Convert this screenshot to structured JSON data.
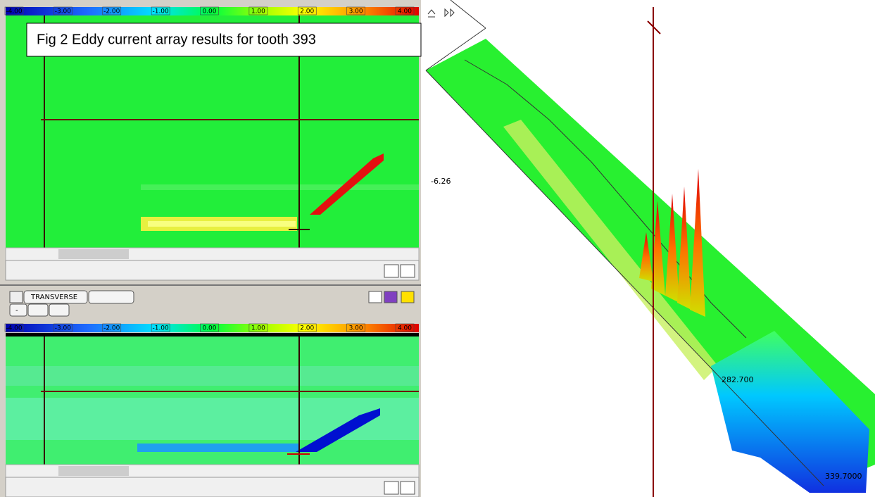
{
  "caption": "Fig 2 Eddy current array results for tooth 393",
  "color_scale": {
    "labels": [
      "-4.00",
      "-3.00",
      "-2.00",
      "-1.00",
      "0.00",
      "1.00",
      "2.00",
      "3.00",
      "4.00"
    ]
  },
  "toolbar": {
    "mode": "TRANSVERSE",
    "small_button": "-"
  },
  "view_3d": {
    "labels": [
      "-6.26",
      "282.700",
      "339.7000"
    ]
  }
}
